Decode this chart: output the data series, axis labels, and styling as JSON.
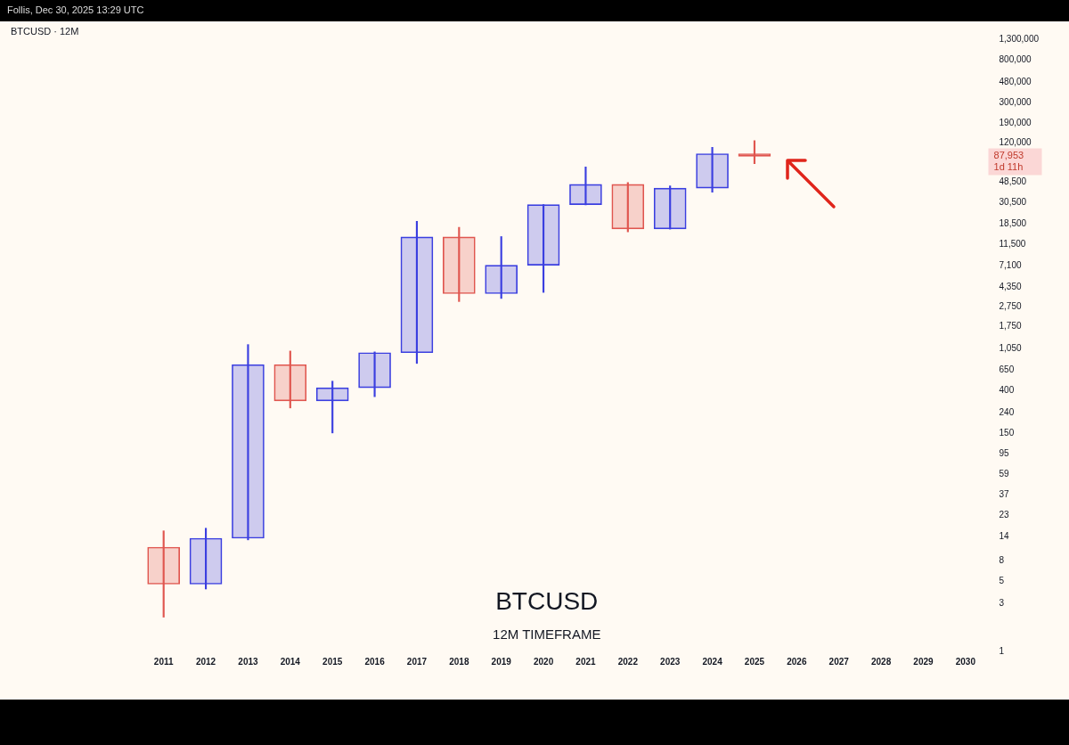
{
  "chart_data": {
    "type": "candlestick",
    "title": "BTCUSD · 12M",
    "subtitle": "BTCUSD",
    "categories": [
      "2011",
      "2012",
      "2013",
      "2014",
      "2015",
      "2016",
      "2017",
      "2018",
      "2019",
      "2020",
      "2021",
      "2022",
      "2023",
      "2024",
      "2025",
      "2026",
      "2027",
      "2028",
      "2029",
      "2030"
    ],
    "ohlc": [
      [
        11,
        16,
        2.2,
        4.7
      ],
      [
        4.7,
        17,
        4.2,
        13.5
      ],
      [
        13.5,
        1160,
        13,
        730
      ],
      [
        730,
        1000,
        270,
        318
      ],
      [
        318,
        500,
        152,
        430
      ],
      [
        430,
        980,
        350,
        963
      ],
      [
        963,
        19700,
        752,
        13800
      ],
      [
        13800,
        17200,
        3120,
        3740
      ],
      [
        3740,
        13900,
        3350,
        7190
      ],
      [
        7190,
        29000,
        3850,
        28950
      ],
      [
        28950,
        69000,
        28800,
        46200
      ],
      [
        46200,
        48200,
        15500,
        16550
      ],
      [
        16550,
        44700,
        16500,
        42260
      ],
      [
        42260,
        108300,
        38500,
        93400
      ],
      [
        93400,
        126200,
        74400,
        87953
      ],
      null,
      null,
      null,
      null,
      null
    ],
    "colors": [
      "#e0564f",
      "#3b3fe0",
      "#3b3fe0",
      "#e0564f",
      "#3b3fe0",
      "#3b3fe0",
      "#3b3fe0",
      "#e0564f",
      "#3b3fe0",
      "#3b3fe0",
      "#3b3fe0",
      "#e0564f",
      "#3b3fe0",
      "#3b3fe0",
      "#e0564f",
      null,
      null,
      null,
      null,
      null
    ],
    "log": true,
    "ylim": [
      1,
      1300000
    ],
    "yticks": [
      1,
      3,
      5,
      8,
      14,
      23,
      37,
      59,
      95,
      150,
      240,
      400,
      650,
      {
        "value": 1050,
        "label": "1,050"
      },
      {
        "value": 1750,
        "label": "1,750"
      },
      {
        "value": 2750,
        "label": "2,750"
      },
      {
        "value": 4350,
        "label": "4,350"
      },
      {
        "value": 7100,
        "label": "7,100"
      },
      {
        "value": 11500,
        "label": "11,500"
      },
      {
        "value": 18500,
        "label": "18,500"
      },
      {
        "value": 30500,
        "label": "30,500"
      },
      {
        "value": 48500,
        "label": "48,500"
      },
      {
        "value": 120000,
        "label": "120,000"
      },
      {
        "value": 190000,
        "label": "190,000"
      },
      {
        "value": 300000,
        "label": "300,000"
      },
      {
        "value": 480000,
        "label": "480,000"
      },
      {
        "value": 800000,
        "label": "800,000"
      },
      {
        "value": 1300000,
        "label": "1,300,000"
      }
    ],
    "grid": false,
    "legend": false,
    "annotations": [
      "12M TIMEFRAME",
      "Follis, Dec 30, 2025 13:29 UTC",
      "87,953",
      "1d 11h"
    ]
  }
}
